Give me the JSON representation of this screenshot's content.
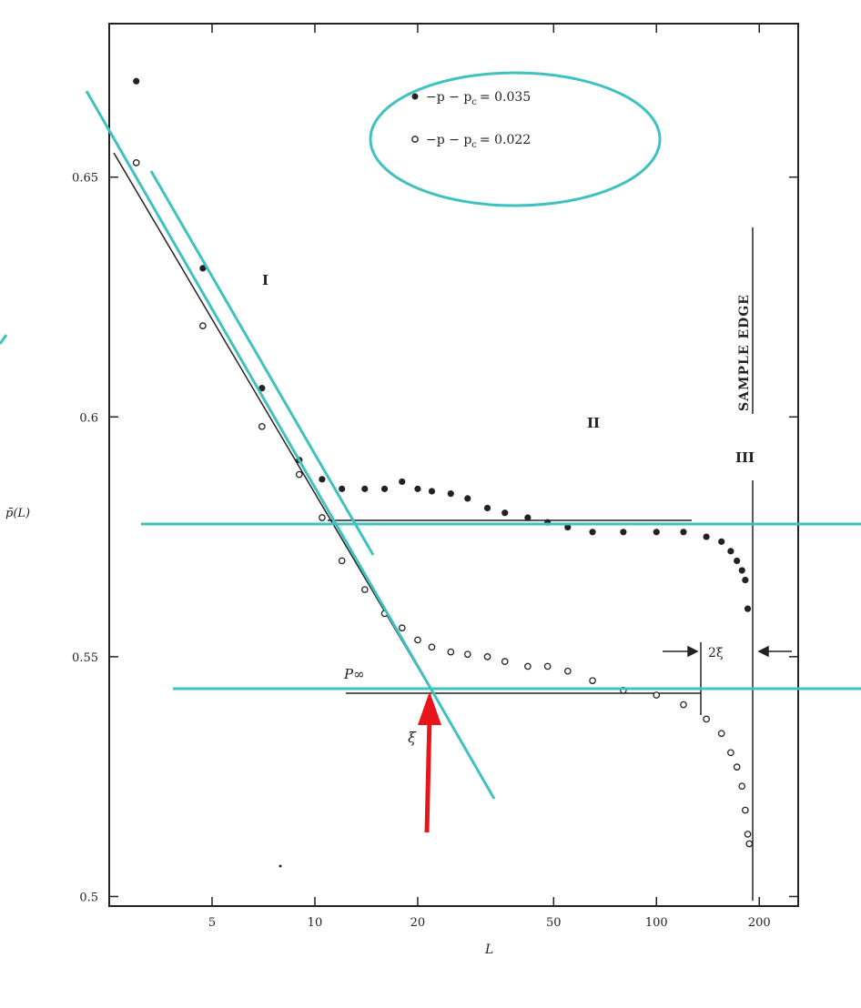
{
  "chart_data": {
    "type": "scatter",
    "x_scale": "log",
    "xlim": [
      2.5,
      260
    ],
    "ylim": [
      0.498,
      0.682
    ],
    "xlabel": "L",
    "ylabel": "p̄(L)",
    "xticks": [
      5,
      10,
      20,
      50,
      100,
      200
    ],
    "xtick_labels": [
      "5",
      "10",
      "20",
      "50",
      "100",
      "200"
    ],
    "yticks": [
      0.5,
      0.55,
      0.6,
      0.65
    ],
    "ytick_labels": [
      "0.5",
      "0.55",
      "0.6",
      "0.65"
    ],
    "grid": false,
    "legend_position": "top-right",
    "series": [
      {
        "name": "p − p_c = 0.035",
        "marker": "filled-circle",
        "x": [
          3,
          4.7,
          7,
          9,
          10.5,
          12,
          14,
          16,
          18,
          20,
          22,
          25,
          28,
          32,
          36,
          42,
          48,
          55,
          65,
          80,
          100,
          120,
          140,
          155,
          165,
          172,
          178,
          182,
          185
        ],
        "y": [
          0.67,
          0.631,
          0.606,
          0.591,
          0.587,
          0.585,
          0.585,
          0.585,
          0.5865,
          0.585,
          0.5845,
          0.584,
          0.583,
          0.581,
          0.58,
          0.579,
          0.578,
          0.577,
          0.576,
          0.576,
          0.576,
          0.576,
          0.575,
          0.574,
          0.572,
          0.57,
          0.568,
          0.566,
          0.56
        ]
      },
      {
        "name": "p − p_c = 0.022",
        "marker": "open-circle",
        "x": [
          3,
          4.7,
          7,
          9,
          10.5,
          12,
          14,
          16,
          18,
          20,
          22,
          25,
          28,
          32,
          36,
          42,
          48,
          55,
          65,
          80,
          100,
          120,
          140,
          155,
          165,
          172,
          178,
          182,
          185,
          187
        ],
        "y": [
          0.653,
          0.619,
          0.598,
          0.588,
          0.579,
          0.57,
          0.564,
          0.559,
          0.556,
          0.5535,
          0.552,
          0.551,
          0.5505,
          0.55,
          0.549,
          0.548,
          0.548,
          0.547,
          0.545,
          0.543,
          0.542,
          0.54,
          0.537,
          0.534,
          0.53,
          0.527,
          0.523,
          0.518,
          0.513,
          0.511
        ]
      }
    ],
    "annotations": {
      "region_1": "I",
      "region_2": "II",
      "region_3": "III",
      "p_infinity": "P∞",
      "xi_mark": "ξ",
      "two_xi": "2ξ",
      "sample_edge": "SAMPLE EDGE"
    }
  },
  "legend": {
    "entries": [
      {
        "label": "−p − p",
        "sub": "c",
        "value": "= 0.035",
        "marker": "filled-circle"
      },
      {
        "label": "−p − p",
        "sub": "c",
        "value": "= 0.022",
        "marker": "open-circle"
      }
    ]
  },
  "colors": {
    "ink": "#222222",
    "teal_overlay": "#3fc1c0",
    "red_arrow": "#e8141c"
  }
}
